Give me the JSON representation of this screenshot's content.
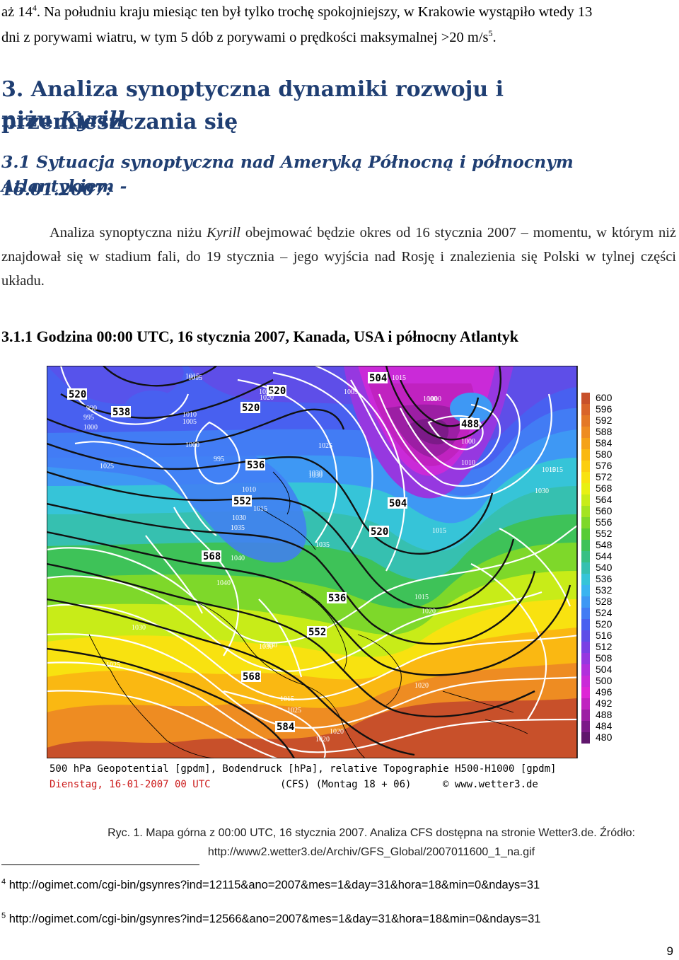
{
  "intro": {
    "line1_a": "aż 14",
    "line1_sup": "4",
    "line1_b": ". Na południu kraju miesiąc ten był tylko trochę spokojniejszy, w Krakowie wystąpiło wtedy 13",
    "line2_a": "dni z porywami wiatru, w tym 5 dób z porywami o prędkości maksymalnej >20 m/s",
    "line2_sup": "5",
    "line2_b": "."
  },
  "section": {
    "number": "3.",
    "title_line1": "Analiza synoptyczna dynamiki rozwoju i przemieszczania się",
    "title_line2_a": "niżu ",
    "title_line2_b": "Kyrill"
  },
  "subsection": {
    "line1": "3.1 Sytuacja synoptyczna nad Ameryką Północną i północnym Atlantykiem -",
    "line2": "16.01.2007:"
  },
  "body": {
    "p_a": "Analiza synoptyczna niżu ",
    "p_b": "Kyrill",
    "p_c": " obejmować będzie okres od 16 stycznia 2007 – momentu, w którym niż znajdował się w stadium fali, do 19 stycznia – jego wyjścia nad Rosję i znalezienia się Polski w tylnej części układu."
  },
  "subsubsection": {
    "title": "3.1.1 Godzina 00:00 UTC, 16 stycznia 2007, Kanada, USA i północny Atlantyk"
  },
  "map": {
    "legend_values": [
      "600",
      "596",
      "592",
      "588",
      "584",
      "580",
      "576",
      "572",
      "568",
      "564",
      "560",
      "556",
      "552",
      "548",
      "544",
      "540",
      "536",
      "532",
      "528",
      "524",
      "520",
      "516",
      "512",
      "508",
      "504",
      "500",
      "496",
      "492",
      "488",
      "484",
      "480"
    ],
    "legend_colors": [
      "#c8502a",
      "#d9642a",
      "#e47826",
      "#ee8c22",
      "#f5a218",
      "#fab812",
      "#fcce10",
      "#f8e210",
      "#e8f012",
      "#c8ec18",
      "#a4e420",
      "#7ed82a",
      "#58cc36",
      "#3ec258",
      "#38c084",
      "#36c0b0",
      "#36c4d8",
      "#3ab4f0",
      "#3e98f4",
      "#427cf4",
      "#4860f0",
      "#5e4ee8",
      "#7a40e4",
      "#9638e0",
      "#b230dc",
      "#ca2ad8",
      "#de26d6",
      "#c022c0",
      "#9c1ea4",
      "#7c1a88",
      "#60166c"
    ],
    "footer_line1": "500 hPa Geopotential [gpdm], Bodendruck [hPa], relative Topographie H500-H1000 [gpdm]",
    "footer_line2_a": "Dienstag, 16-01-2007   00 UTC",
    "footer_line2_b": "(CFS)  (Montag 18 + 06)",
    "footer_line2_c": "© www.wetter3.de",
    "geopotential_labels": [
      "520",
      "538",
      "520",
      "520",
      "504",
      "488",
      "536",
      "552",
      "504",
      "520",
      "568",
      "536",
      "552",
      "568",
      "584"
    ],
    "pressure_labels": [
      "1015",
      "1025",
      "1000",
      "990",
      "995",
      "1000",
      "1010",
      "1005",
      "1000",
      "995",
      "1030",
      "1015",
      "1025",
      "1035",
      "1040",
      "1030",
      "1040",
      "1030",
      "1030",
      "1025",
      "1020",
      "1015",
      "1005",
      "1000",
      "1015",
      "1030",
      "1025",
      "1015",
      "1020",
      "1035",
      "1030",
      "1010",
      "1015",
      "1030",
      "1025",
      "1020",
      "1015",
      "1000",
      "1010",
      "1015",
      "1020",
      "1015",
      "1020"
    ]
  },
  "caption": {
    "line1": "Ryc. 1. Mapa górna z 00:00 UTC, 16 stycznia 2007. Analiza CFS dostępna na stronie Wetter3.de. Źródło:",
    "line2": "http://www2.wetter3.de/Archiv/GFS_Global/2007011600_1_na.gif"
  },
  "footnotes": [
    {
      "num": "4",
      "text": "http://ogimet.com/cgi-bin/gsynres?ind=12115&ano=2007&mes=1&day=31&hora=18&min=0&ndays=31"
    },
    {
      "num": "5",
      "text": "http://ogimet.com/cgi-bin/gsynres?ind=12566&ano=2007&mes=1&day=31&hora=18&min=0&ndays=31"
    }
  ],
  "page_number": "9"
}
